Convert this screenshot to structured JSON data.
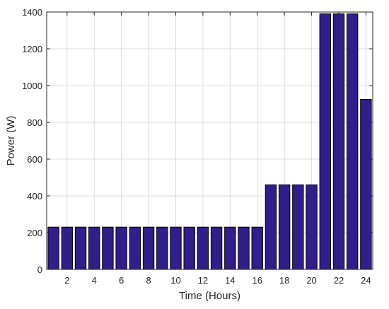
{
  "chart_data": {
    "type": "bar",
    "x": [
      1,
      2,
      3,
      4,
      5,
      6,
      7,
      8,
      9,
      10,
      11,
      12,
      13,
      14,
      15,
      16,
      17,
      18,
      19,
      20,
      21,
      22,
      23,
      24
    ],
    "values": [
      230,
      230,
      230,
      230,
      230,
      230,
      230,
      230,
      230,
      230,
      230,
      230,
      230,
      230,
      230,
      230,
      460,
      460,
      460,
      460,
      1390,
      1390,
      1390,
      925
    ],
    "xlabel": "Time (Hours)",
    "ylabel": "Power (W)",
    "xlim": [
      0.5,
      24.5
    ],
    "ylim": [
      0,
      1400
    ],
    "xticks": [
      2,
      4,
      6,
      8,
      10,
      12,
      14,
      16,
      18,
      20,
      22,
      24
    ],
    "yticks": [
      0,
      200,
      400,
      600,
      800,
      1000,
      1200,
      1400
    ],
    "grid": true,
    "bar_color": "#2e1f8c",
    "bar_edge_color": "#000000"
  }
}
